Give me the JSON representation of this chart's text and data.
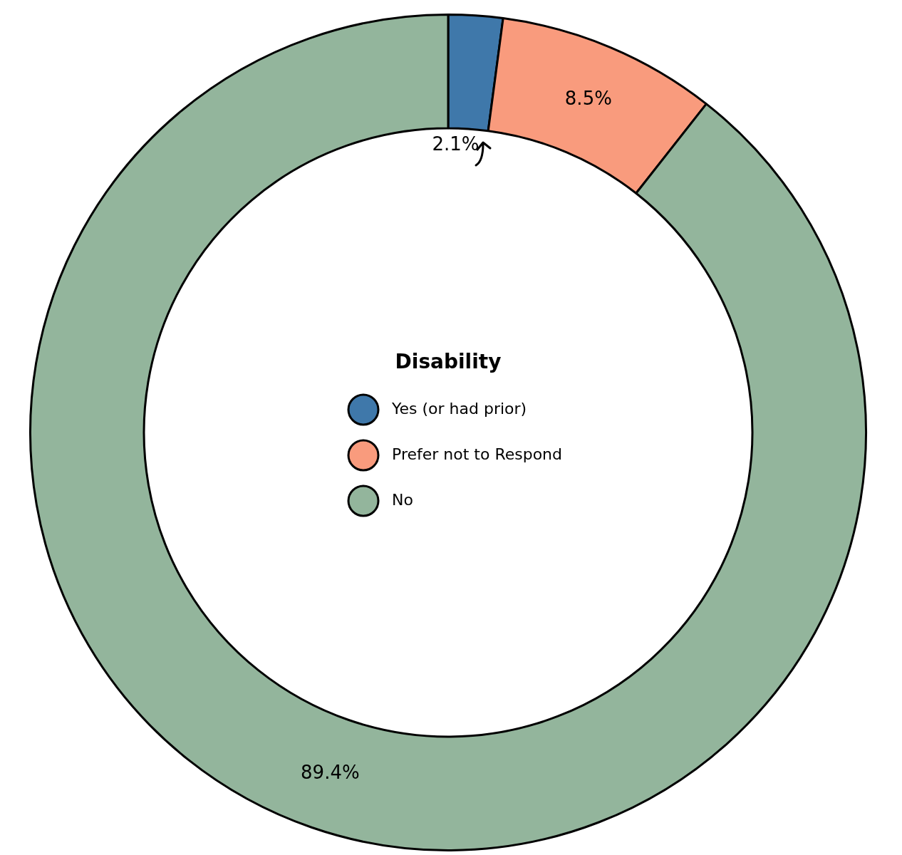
{
  "chart_data": {
    "type": "donut",
    "legend_title": "Disability",
    "legend": "center",
    "categories": [
      "Yes (or had prior)",
      "Prefer not to Respond",
      "No"
    ],
    "values": [
      2.1,
      8.5,
      89.4
    ],
    "colors": [
      "#3f78aa",
      "#f99b7d",
      "#93b59c"
    ],
    "value_labels": [
      "2.1%",
      "8.5%",
      "89.4%"
    ]
  }
}
